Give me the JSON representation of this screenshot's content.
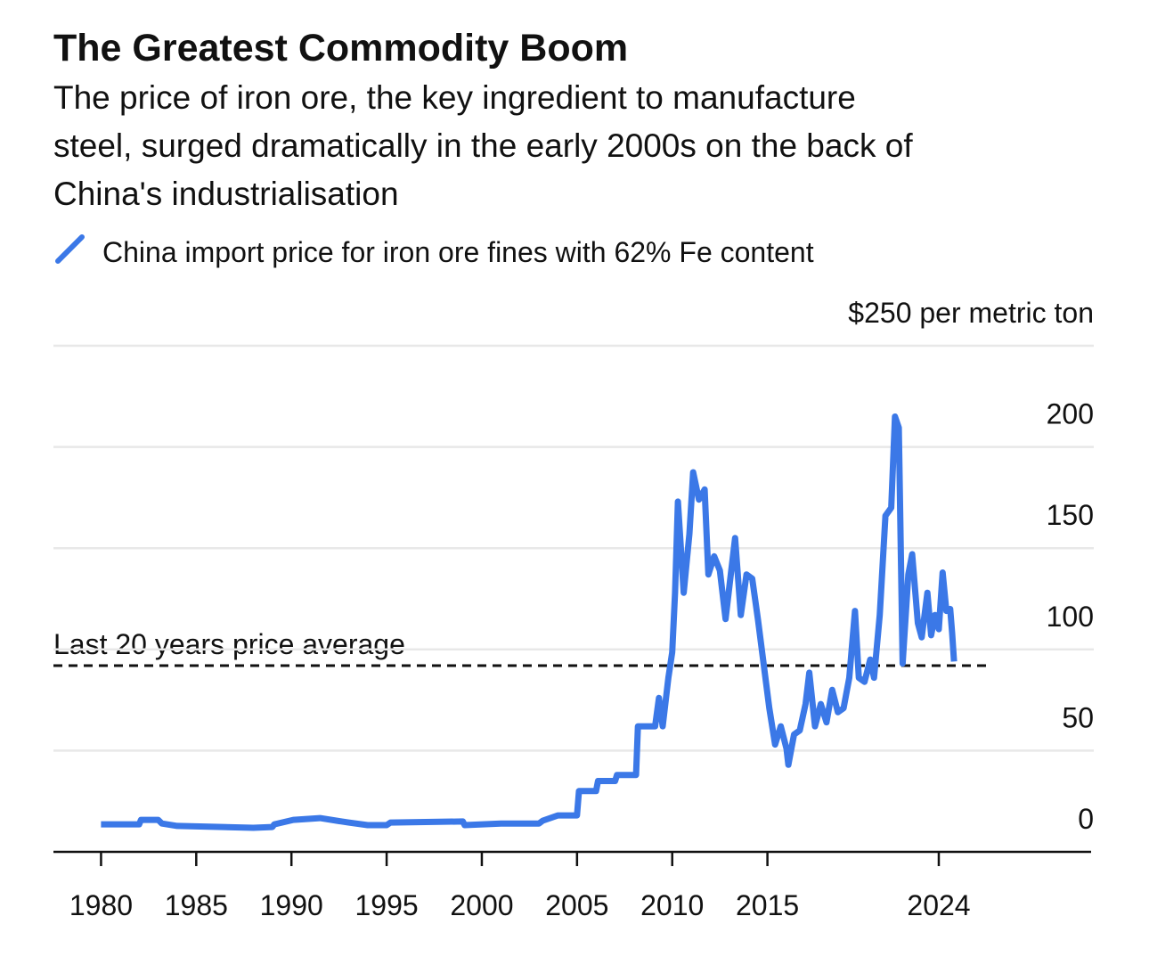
{
  "chart_data": {
    "type": "line",
    "title": "The Greatest Commodity Boom",
    "subtitle": [
      "The price of iron ore, the key ingredient to manufacture",
      "steel, surged dramatically in the early 2000s on the back of",
      "China's industrialisation"
    ],
    "x": [
      1980,
      1982,
      1982.1,
      1983,
      1983.2,
      1984,
      1988,
      1989,
      1989.1,
      1990.1,
      1991.5,
      1993,
      1994,
      1995,
      1995.2,
      1999,
      1999.1,
      2001,
      2003,
      2003.2,
      2004,
      2005,
      2005.1,
      2006,
      2006.1,
      2007,
      2007.1,
      2008.1,
      2008.2,
      2009.1,
      2009.3,
      2009.5,
      2009.8,
      2010,
      2010.15,
      2010.3,
      2010.6,
      2010.9,
      2011.1,
      2011.4,
      2011.7,
      2011.9,
      2012.2,
      2012.5,
      2012.8,
      2013.1,
      2013.3,
      2013.6,
      2013.9,
      2014.2,
      2014.5,
      2014.8,
      2015.1,
      2015.4,
      2015.7,
      2016,
      2016.1,
      2016.4,
      2016.7,
      2017,
      2017.2,
      2017.5,
      2017.8,
      2018.1,
      2018.4,
      2018.7,
      2019,
      2019.3,
      2019.6,
      2019.8,
      2020.1,
      2020.4,
      2020.6,
      2020.9,
      2021.2,
      2021.5,
      2021.7,
      2021.9,
      2022.1,
      2022.4,
      2022.6,
      2022.9,
      2023.1,
      2023.4,
      2023.6,
      2023.8,
      2024,
      2024.2,
      2024.4,
      2024.6,
      2024.7,
      2024.8
    ],
    "series": [
      {
        "name": "China import price for iron ore fines with 62% Fe content",
        "color": "#3b78e7",
        "values": [
          13.6,
          13.6,
          15.8,
          15.8,
          14,
          12.8,
          11.9,
          12.3,
          13.6,
          15.8,
          16.7,
          14.5,
          13.2,
          13.2,
          14.5,
          15,
          13.2,
          14,
          14,
          15.4,
          18,
          18,
          30,
          30,
          35,
          35,
          38,
          38,
          62,
          62,
          76,
          62,
          86,
          98.6,
          128,
          173,
          128,
          157,
          187.5,
          174,
          179,
          137,
          146,
          139,
          115,
          139,
          155,
          117,
          137,
          135,
          115,
          93,
          71,
          53,
          62,
          51,
          43,
          58,
          60,
          73,
          88.5,
          62,
          73,
          64,
          80,
          69,
          71,
          86,
          119,
          86,
          84,
          95,
          86,
          117,
          166,
          170,
          215,
          209.5,
          93,
          137,
          147,
          113,
          106,
          128,
          107,
          117,
          110,
          138,
          119,
          120,
          108,
          94
        ]
      }
    ],
    "reference_line": {
      "label": "Last 20 years price average",
      "value": 92
    },
    "xlim": [
      1977.5,
      2032
    ],
    "xticks": [
      1980,
      1985,
      1990,
      1995,
      2000,
      2005,
      2010,
      2015,
      2024
    ],
    "ylim": [
      0,
      250
    ],
    "yticks": [
      0,
      50,
      100,
      150,
      200,
      {
        "value": 250,
        "label": "$250 per metric ton"
      }
    ],
    "grid": true
  }
}
